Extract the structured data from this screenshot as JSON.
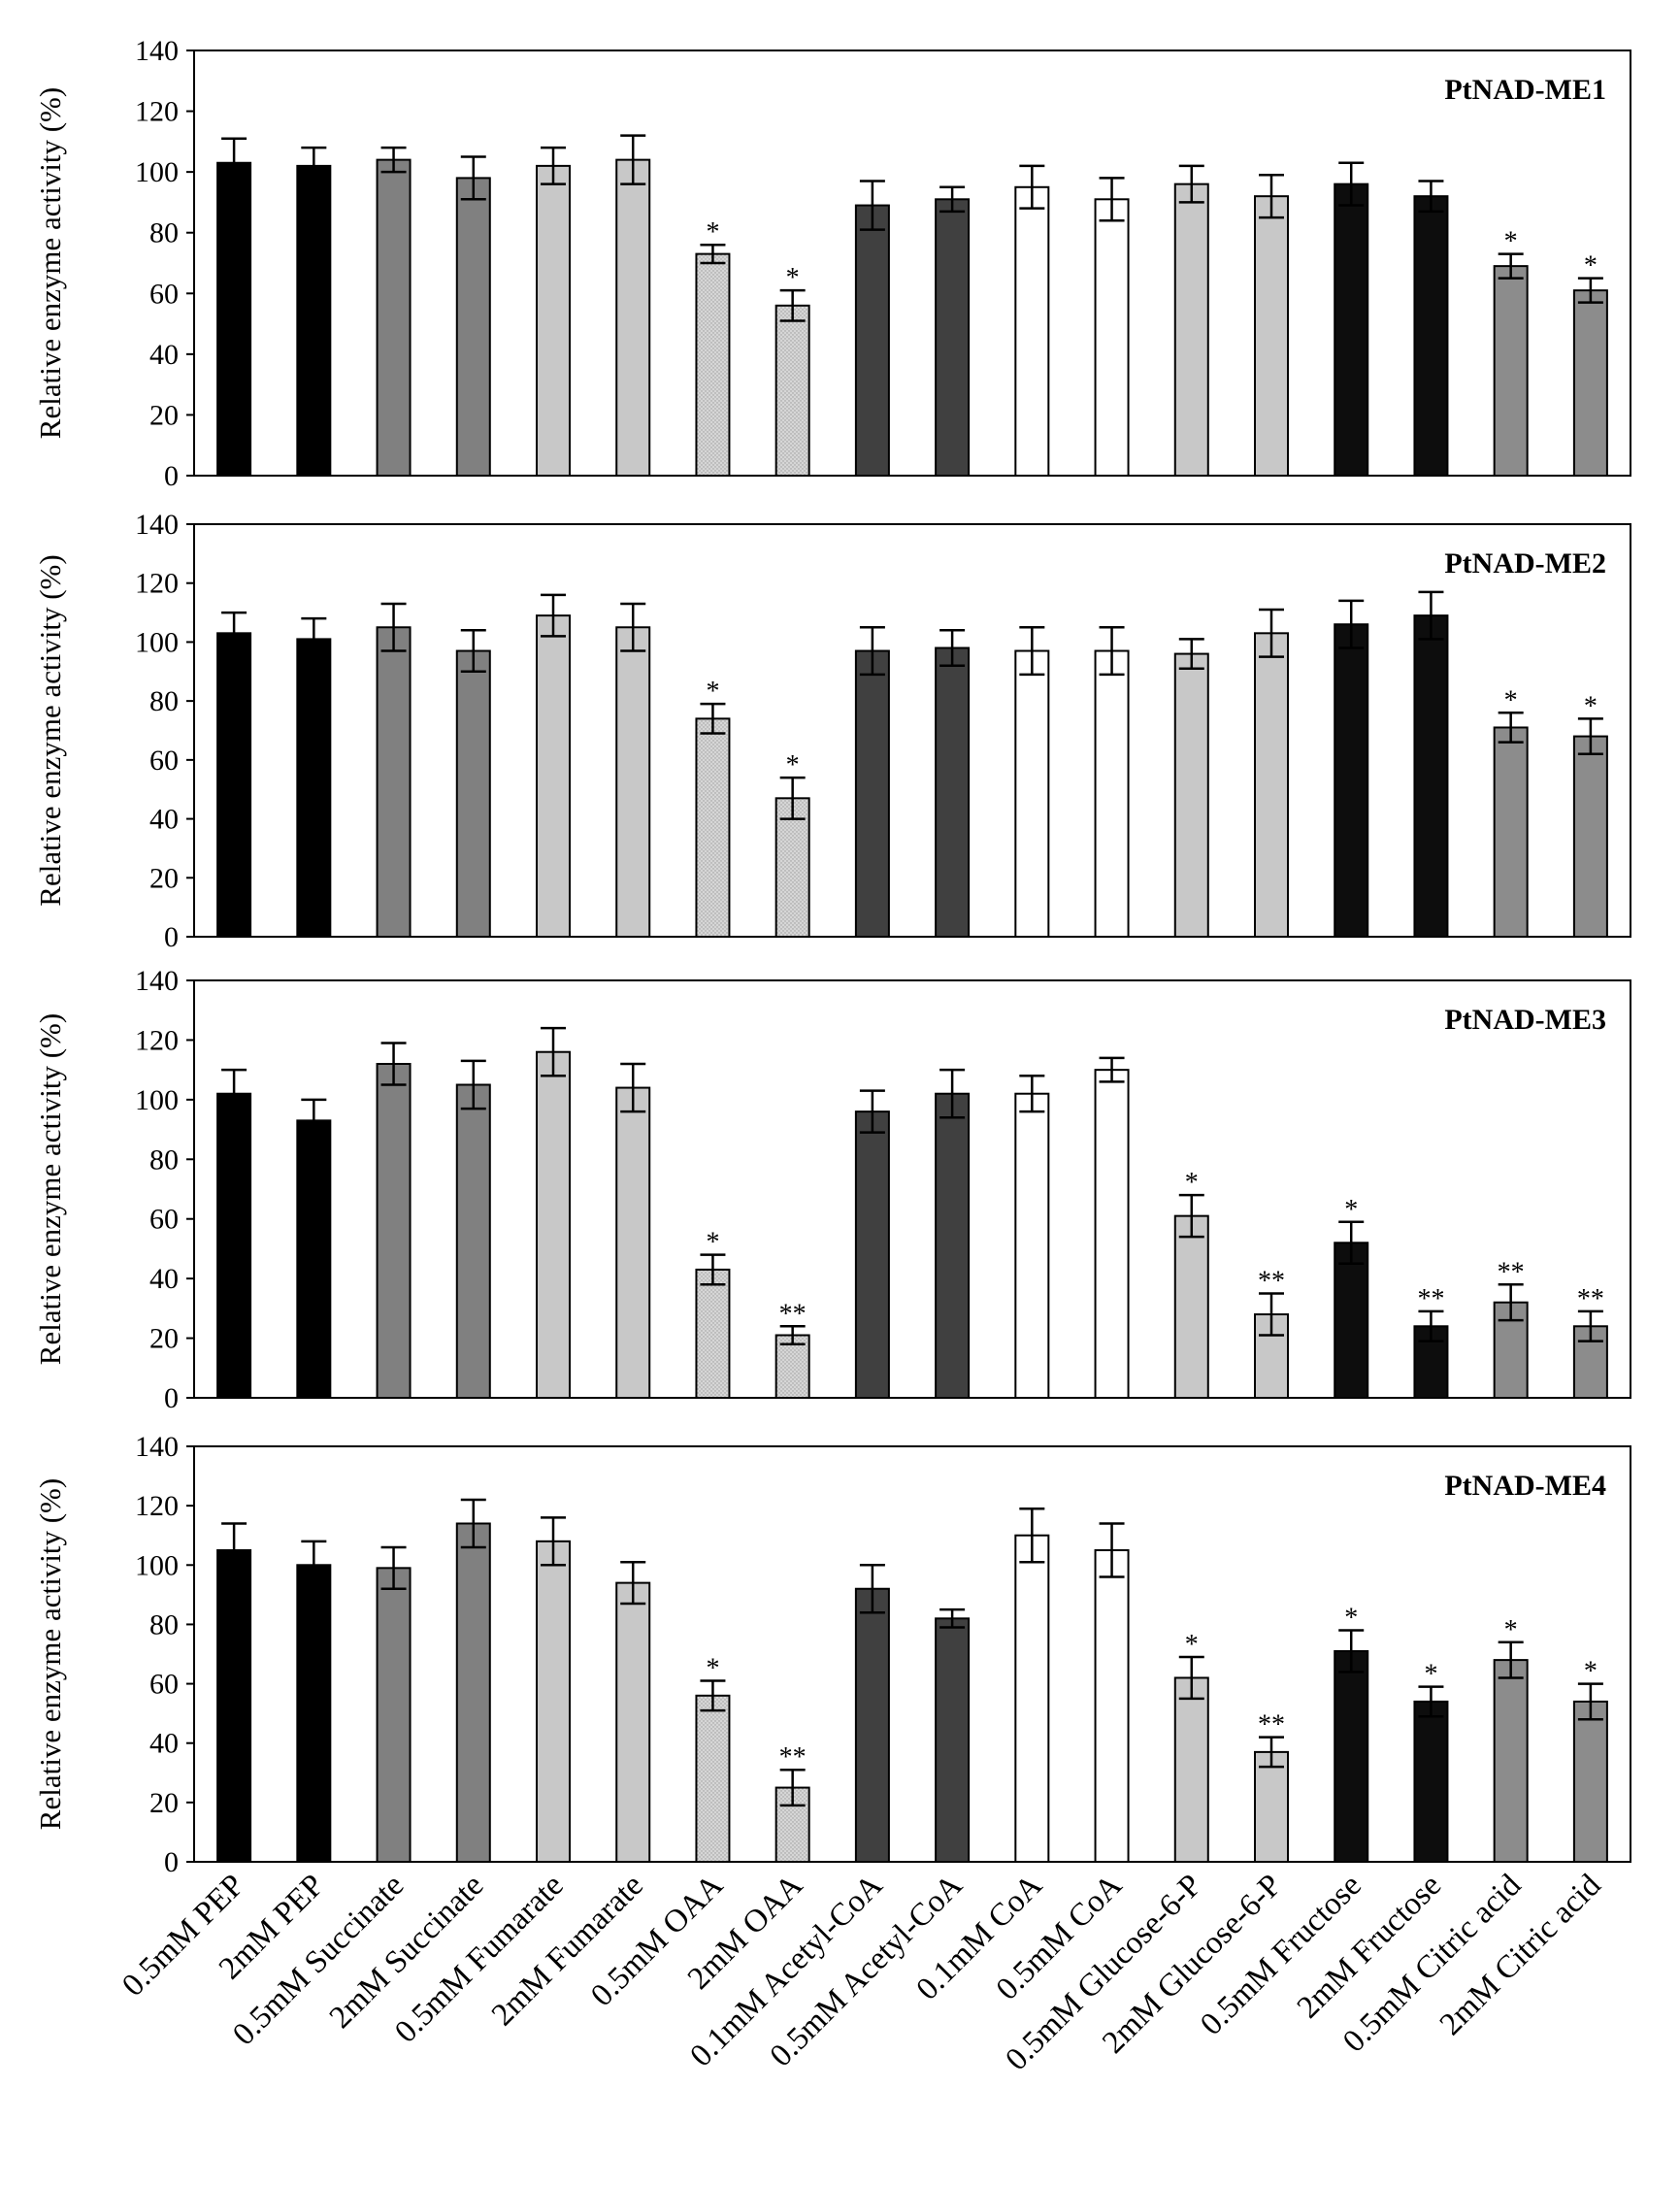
{
  "figure": {
    "categories": [
      "0.5mM PEP",
      "2mM PEP",
      "0.5mM Succinate",
      "2mM Succinate",
      "0.5mM Fumarate",
      "2mM Fumarate",
      "0.5mM OAA",
      "2mM OAA",
      "0.1mM Acetyl-CoA",
      "0.5mM Acetyl-CoA",
      "0.1mM CoA",
      "0.5mM CoA",
      "0.5mM Glucose-6-P",
      "2mM Glucose-6-P",
      "0.5mM Fructose",
      "2mM Fructose",
      "0.5mM Citric acid",
      "2mM Citric acid"
    ],
    "bar_fills": [
      "#000000",
      "#000000",
      "#808080",
      "#808080",
      "#c8c8c8",
      "#c8c8c8",
      "#d2d2d2",
      "#d2d2d2",
      "#404040",
      "#404040",
      "#ffffff",
      "#ffffff",
      "#c8c8c8",
      "#c8c8c8",
      "#0d0d0d",
      "#0d0d0d",
      "#8c8c8c",
      "#8c8c8c"
    ]
  },
  "chart_data": [
    {
      "type": "bar",
      "title": "PtNAD-ME1",
      "xlabel": "",
      "ylabel": "Relative enzyme activity (%)",
      "ylim": [
        0,
        140
      ],
      "yticks": [
        "0",
        "20",
        "40",
        "60",
        "80",
        "100",
        "120",
        "140"
      ],
      "values": [
        103,
        102,
        104,
        98,
        102,
        104,
        73,
        56,
        89,
        91,
        95,
        91,
        96,
        92,
        96,
        92,
        69,
        61
      ],
      "errors": [
        8,
        6,
        4,
        7,
        6,
        8,
        3,
        5,
        8,
        4,
        7,
        7,
        6,
        7,
        7,
        5,
        4,
        4
      ],
      "significance": [
        "",
        "",
        "",
        "",
        "",
        "",
        "*",
        "*",
        "",
        "",
        "",
        "",
        "",
        "",
        "",
        "",
        "*",
        "*"
      ]
    },
    {
      "type": "bar",
      "title": "PtNAD-ME2",
      "xlabel": "",
      "ylabel": "Relative enzyme activity (%)",
      "ylim": [
        0,
        140
      ],
      "yticks": [
        "0",
        "20",
        "40",
        "60",
        "80",
        "100",
        "120",
        "140"
      ],
      "values": [
        103,
        101,
        105,
        97,
        109,
        105,
        74,
        47,
        97,
        98,
        97,
        97,
        96,
        103,
        106,
        109,
        71,
        68
      ],
      "errors": [
        7,
        7,
        8,
        7,
        7,
        8,
        5,
        7,
        8,
        6,
        8,
        8,
        5,
        8,
        8,
        8,
        5,
        6
      ],
      "significance": [
        "",
        "",
        "",
        "",
        "",
        "",
        "*",
        "*",
        "",
        "",
        "",
        "",
        "",
        "",
        "",
        "",
        "*",
        "*"
      ]
    },
    {
      "type": "bar",
      "title": "PtNAD-ME3",
      "xlabel": "",
      "ylabel": "Relative enzyme activity (%)",
      "ylim": [
        0,
        140
      ],
      "yticks": [
        "0",
        "20",
        "40",
        "60",
        "80",
        "100",
        "120",
        "140"
      ],
      "values": [
        102,
        93,
        112,
        105,
        116,
        104,
        43,
        21,
        96,
        102,
        102,
        110,
        61,
        28,
        52,
        24,
        32,
        24
      ],
      "errors": [
        8,
        7,
        7,
        8,
        8,
        8,
        5,
        3,
        7,
        8,
        6,
        4,
        7,
        7,
        7,
        5,
        6,
        5
      ],
      "significance": [
        "",
        "",
        "",
        "",
        "",
        "",
        "*",
        "**",
        "",
        "",
        "",
        "",
        "*",
        "**",
        "*",
        "**",
        "**",
        "**"
      ]
    },
    {
      "type": "bar",
      "title": "PtNAD-ME4",
      "xlabel": "",
      "ylabel": "Relative enzyme activity (%)",
      "ylim": [
        0,
        140
      ],
      "yticks": [
        "0",
        "20",
        "40",
        "60",
        "80",
        "100",
        "120",
        "140"
      ],
      "values": [
        105,
        100,
        99,
        114,
        108,
        94,
        56,
        25,
        92,
        82,
        110,
        105,
        62,
        37,
        71,
        54,
        68,
        54
      ],
      "errors": [
        9,
        8,
        7,
        8,
        8,
        7,
        5,
        6,
        8,
        3,
        9,
        9,
        7,
        5,
        7,
        5,
        6,
        6
      ],
      "significance": [
        "",
        "",
        "",
        "",
        "",
        "",
        "*",
        "**",
        "",
        "",
        "",
        "",
        "*",
        "**",
        "*",
        "*",
        "*",
        "*"
      ]
    }
  ]
}
